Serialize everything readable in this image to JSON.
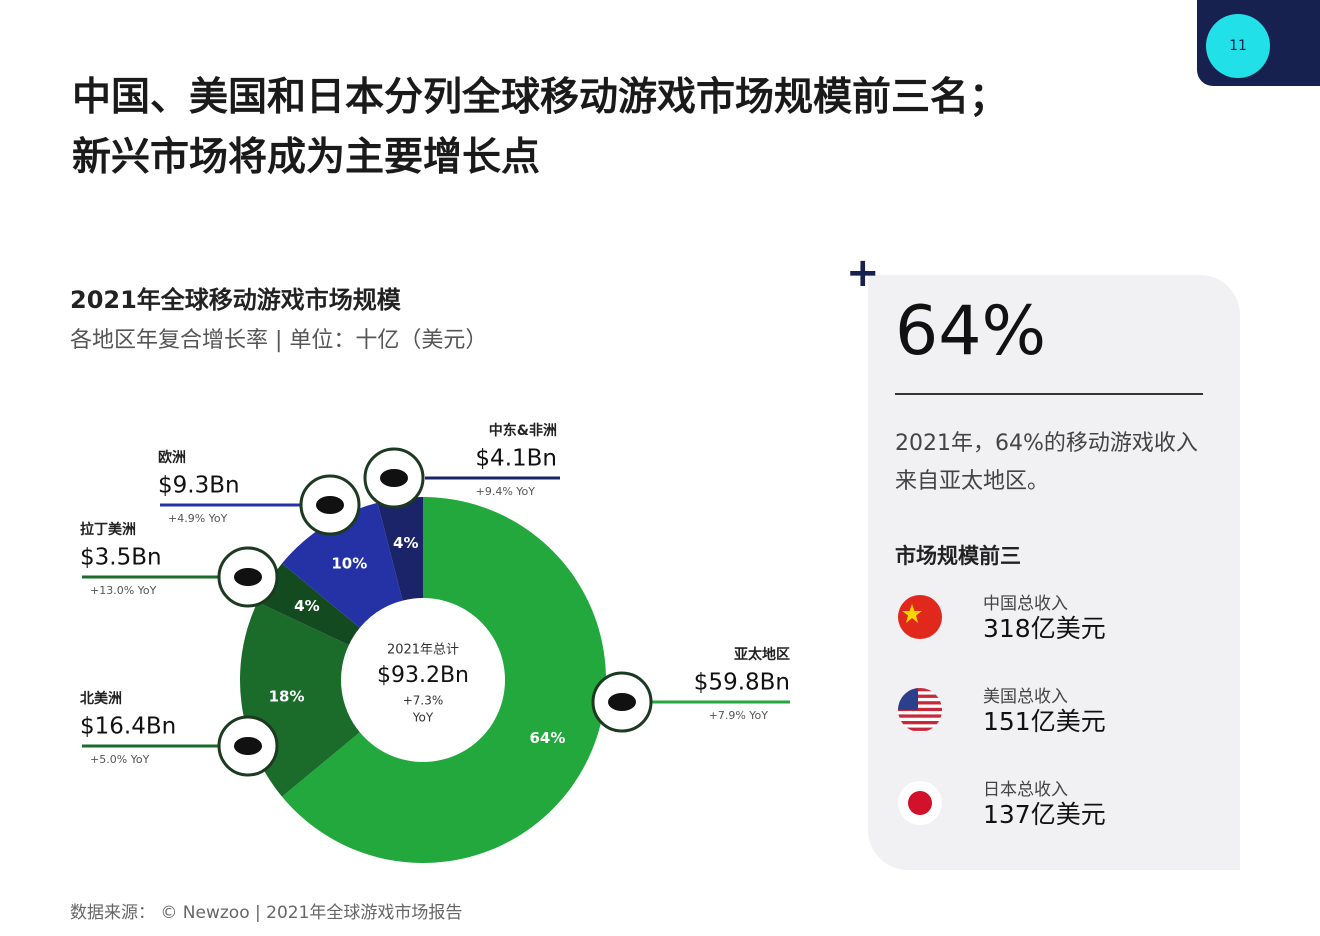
{
  "header": {
    "title_lines": [
      "中国、美国和日本分列全球移动游戏市场规模前三名；",
      "新兴市场将成为主要增长点"
    ],
    "page_number": "11"
  },
  "chart_data": {
    "type": "donut",
    "title": "2021年全球移动游戏市场规模",
    "subtitle": "各地区年复合增长率 | 单位：十亿（美元）",
    "categories": [
      "亚太地区",
      "北美洲",
      "拉丁美洲",
      "欧洲",
      "中东&非洲"
    ],
    "values": [
      64,
      18,
      4,
      10,
      4
    ],
    "value_labels": [
      "64%",
      "18%",
      "4%",
      "10%",
      "4%"
    ],
    "amount_labels": [
      "$59.8Bn",
      "$16.4Bn",
      "$3.5Bn",
      "$9.3Bn",
      "$4.1Bn"
    ],
    "growth_labels": [
      "+7.9% YoY",
      "+5.0% YoY",
      "+13.0% YoY",
      "+4.9% YoY",
      "+9.4% YoY"
    ],
    "colors": [
      "#22a83c",
      "#1b6b2b",
      "#134a20",
      "#2432a6",
      "#1b2468"
    ],
    "center": {
      "label": "2021年总计",
      "amount": "$93.2Bn",
      "growth": "+7.3%",
      "unit": "YoY"
    }
  },
  "panel": {
    "big_stat": "64%",
    "description": "2021年，64%的移动游戏收入来自亚太地区。",
    "list_title": "市场规模前三",
    "items": [
      {
        "label": "中国总收入",
        "value": "318亿美元"
      },
      {
        "label": "美国总收入",
        "value": "151亿美元"
      },
      {
        "label": "日本总收入",
        "value": "137亿美元"
      }
    ]
  },
  "source": "数据来源： © Newzoo | 2021年全球游戏市场报告"
}
